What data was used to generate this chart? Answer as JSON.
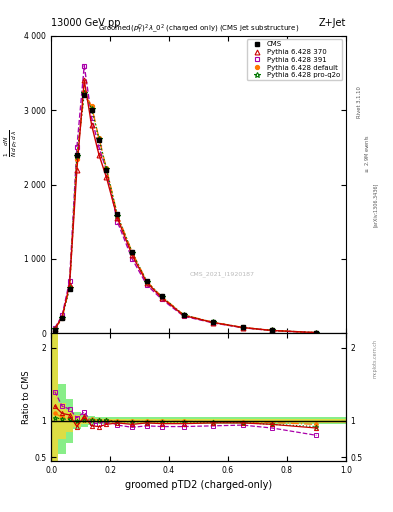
{
  "title_top": "13000 GeV pp",
  "title_right": "Z+Jet",
  "xlabel": "groomed pTD2 (charged-only)",
  "ylabel_ratio": "Ratio to CMS",
  "watermark": "CMS_2021_I1920187",
  "x_bins": [
    0.0,
    0.025,
    0.05,
    0.075,
    0.1,
    0.125,
    0.15,
    0.175,
    0.2,
    0.25,
    0.3,
    0.35,
    0.4,
    0.5,
    0.6,
    0.7,
    0.8,
    1.0
  ],
  "cms_values": [
    50,
    200,
    600,
    2400,
    3200,
    3000,
    2600,
    2200,
    1600,
    1100,
    700,
    500,
    250,
    150,
    80,
    40,
    10
  ],
  "py370_values": [
    60,
    220,
    650,
    2200,
    3400,
    2800,
    2400,
    2100,
    1550,
    1050,
    680,
    480,
    240,
    145,
    78,
    38,
    9
  ],
  "py391_values": [
    70,
    240,
    700,
    2500,
    3600,
    2900,
    2500,
    2200,
    1500,
    1000,
    650,
    460,
    230,
    140,
    75,
    36,
    8
  ],
  "pydef_values": [
    55,
    210,
    620,
    2350,
    3250,
    3050,
    2620,
    2220,
    1590,
    1090,
    695,
    495,
    248,
    148,
    79,
    39,
    9.5
  ],
  "pyproq2o_values": [
    52,
    205,
    610,
    2380,
    3230,
    3020,
    2610,
    2210,
    1580,
    1085,
    692,
    492,
    246,
    147,
    78,
    38,
    9.2
  ],
  "ratio_370": [
    1.2,
    1.1,
    1.08,
    0.92,
    1.06,
    0.93,
    0.92,
    0.95,
    0.97,
    0.95,
    0.97,
    0.96,
    0.96,
    0.97,
    0.97,
    0.95,
    0.9
  ],
  "ratio_391": [
    1.4,
    1.2,
    1.16,
    1.04,
    1.12,
    0.97,
    0.96,
    1.0,
    0.94,
    0.91,
    0.93,
    0.92,
    0.92,
    0.93,
    0.94,
    0.9,
    0.8
  ],
  "ratio_def": [
    1.1,
    1.05,
    1.03,
    0.98,
    1.016,
    1.017,
    1.008,
    1.009,
    0.994,
    0.991,
    0.993,
    0.99,
    0.992,
    0.987,
    0.988,
    0.975,
    0.95
  ],
  "ratio_proq2o": [
    1.04,
    1.025,
    1.017,
    0.992,
    1.009,
    1.007,
    1.004,
    1.005,
    0.988,
    0.986,
    0.989,
    0.984,
    0.984,
    0.98,
    0.975,
    0.95,
    0.92
  ],
  "green_band_lo": [
    0.45,
    0.55,
    0.7,
    0.88,
    0.92,
    0.94,
    0.95,
    0.95,
    0.95,
    0.95,
    0.95,
    0.95,
    0.95,
    0.95,
    0.95,
    0.95,
    0.95
  ],
  "green_band_hi": [
    2.5,
    1.5,
    1.3,
    1.12,
    1.08,
    1.06,
    1.05,
    1.05,
    1.05,
    1.05,
    1.05,
    1.05,
    1.05,
    1.05,
    1.05,
    1.05,
    1.05
  ],
  "yellow_band_lo": [
    0.45,
    0.75,
    0.85,
    0.92,
    0.95,
    0.97,
    0.975,
    0.975,
    0.975,
    0.975,
    0.975,
    0.975,
    0.975,
    0.975,
    0.975,
    0.975,
    0.975
  ],
  "yellow_band_hi": [
    2.5,
    1.25,
    1.15,
    1.08,
    1.05,
    1.03,
    1.025,
    1.025,
    1.025,
    1.025,
    1.025,
    1.025,
    1.025,
    1.025,
    1.025,
    1.025,
    1.025
  ],
  "color_cms": "#000000",
  "color_370": "#cc0000",
  "color_391": "#aa00aa",
  "color_def": "#ff7700",
  "color_proq2o": "#007700",
  "color_green_band": "#88ee88",
  "color_yellow_band": "#dddd44",
  "ylim_main": [
    0,
    4000
  ],
  "ylim_ratio": [
    0.45,
    2.2
  ],
  "xlim": [
    0.0,
    1.0
  ]
}
